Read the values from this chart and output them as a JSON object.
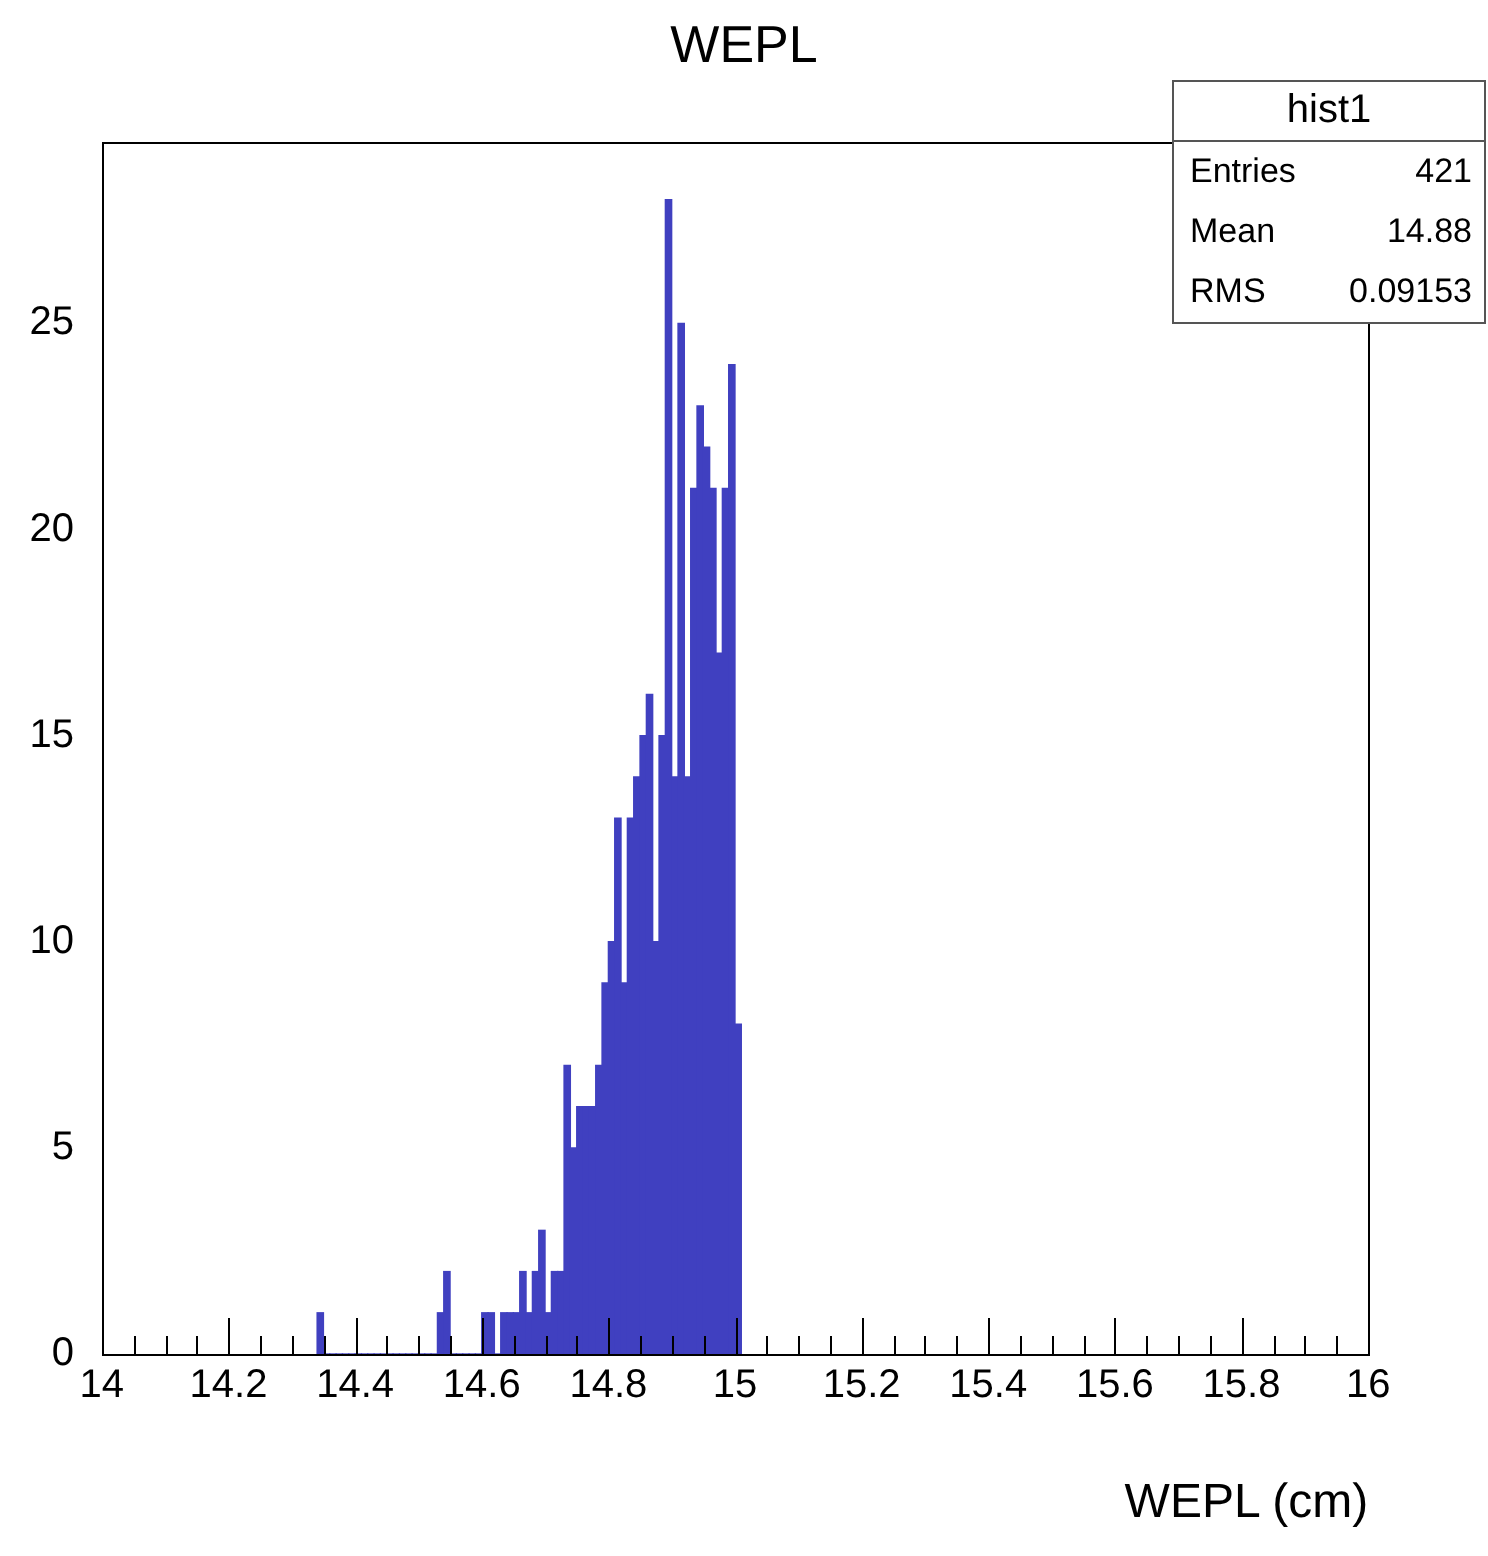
{
  "chart_data": {
    "type": "histogram",
    "title": "WEPL",
    "xlabel": "WEPL (cm)",
    "bins": [
      14.34,
      14.35,
      14.36,
      14.37,
      14.38,
      14.39,
      14.4,
      14.41,
      14.42,
      14.43,
      14.44,
      14.45,
      14.46,
      14.47,
      14.48,
      14.49,
      14.5,
      14.51,
      14.52,
      14.53,
      14.54,
      14.55,
      14.56,
      14.57,
      14.58,
      14.59,
      14.6,
      14.61,
      14.62,
      14.63,
      14.64,
      14.65,
      14.66,
      14.67,
      14.68,
      14.69,
      14.7,
      14.71,
      14.72,
      14.73,
      14.74,
      14.75,
      14.76,
      14.77,
      14.78,
      14.79,
      14.8,
      14.81,
      14.82,
      14.83,
      14.84,
      14.85,
      14.86,
      14.87,
      14.88,
      14.89,
      14.9,
      14.91,
      14.92,
      14.93,
      14.94,
      14.95,
      14.96,
      14.97,
      14.98,
      14.99,
      15,
      15.01
    ],
    "values": [
      1,
      0,
      0,
      0,
      0,
      0,
      0,
      0,
      0,
      0,
      0,
      0,
      0,
      0,
      0,
      0,
      0,
      0,
      0,
      1,
      2,
      0,
      0,
      0,
      0,
      0,
      1,
      1,
      0,
      1,
      1,
      1,
      2,
      1,
      2,
      3,
      1,
      2,
      2,
      7,
      5,
      6,
      6,
      6,
      7,
      9,
      10,
      13,
      9,
      13,
      14,
      15,
      16,
      10,
      15,
      28,
      14,
      25,
      14,
      21,
      23,
      22,
      21,
      17,
      21,
      24,
      8
    ],
    "color": "#4040c0",
    "xlim": [
      14,
      16
    ],
    "xticks": [
      14,
      {
        "value": 14.05,
        "label": null
      },
      {
        "value": 14.1,
        "label": null
      },
      {
        "value": 14.15,
        "label": null
      },
      14.2,
      {
        "value": 14.25,
        "label": null
      },
      {
        "value": 14.3,
        "label": null
      },
      {
        "value": 14.35,
        "label": null
      },
      14.4,
      {
        "value": 14.45,
        "label": null
      },
      {
        "value": 14.5,
        "label": null
      },
      {
        "value": 14.55,
        "label": null
      },
      14.6,
      {
        "value": 14.65,
        "label": null
      },
      {
        "value": 14.7,
        "label": null
      },
      {
        "value": 14.75,
        "label": null
      },
      14.8,
      {
        "value": 14.85,
        "label": null
      },
      {
        "value": 14.9,
        "label": null
      },
      {
        "value": 14.95,
        "label": null
      },
      15,
      {
        "value": 15.05,
        "label": null
      },
      {
        "value": 15.1,
        "label": null
      },
      {
        "value": 15.15,
        "label": null
      },
      15.2,
      {
        "value": 15.25,
        "label": null
      },
      {
        "value": 15.3,
        "label": null
      },
      {
        "value": 15.35,
        "label": null
      },
      15.4,
      {
        "value": 15.45,
        "label": null
      },
      {
        "value": 15.5,
        "label": null
      },
      {
        "value": 15.55,
        "label": null
      },
      15.6,
      {
        "value": 15.65,
        "label": null
      },
      {
        "value": 15.7,
        "label": null
      },
      {
        "value": 15.75,
        "label": null
      },
      15.8,
      {
        "value": 15.85,
        "label": null
      },
      {
        "value": 15.9,
        "label": null
      },
      {
        "value": 15.95,
        "label": null
      },
      16
    ],
    "ylim": [
      0,
      29.4
    ],
    "yticks": [
      0,
      5,
      10,
      15,
      20,
      25
    ],
    "grid": false,
    "legend": false,
    "annotations": [
      "hist1",
      "Entries",
      "421",
      "Mean",
      "14.88",
      "RMS",
      "0.09153"
    ]
  }
}
